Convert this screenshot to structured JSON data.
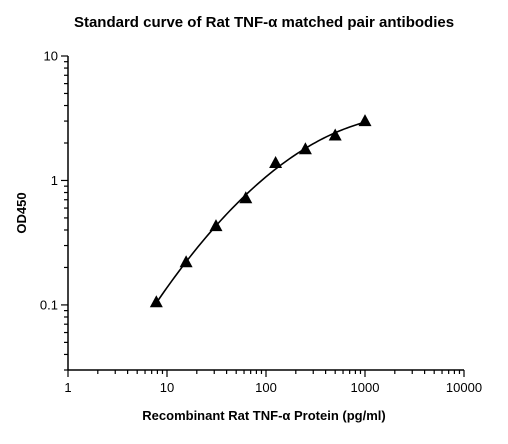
{
  "chart_data": {
    "type": "scatter",
    "title": "Standard curve of Rat TNF-α matched pair antibodies",
    "xlabel": "Recombinant Rat TNF-α Protein (pg/ml)",
    "ylabel": "OD450",
    "xscale": "log",
    "yscale": "log",
    "xlim": [
      1,
      10000
    ],
    "ylim": [
      0.03,
      10
    ],
    "xticks": [
      1,
      10,
      100,
      1000,
      10000
    ],
    "xtick_labels": [
      "1",
      "10",
      "100",
      "1000",
      "10000"
    ],
    "yticks": [
      0.1,
      1,
      10
    ],
    "ytick_labels": [
      "0.1",
      "1",
      "10"
    ],
    "grid": false,
    "legend": "none",
    "marker": "triangle",
    "color": "#000000",
    "fit_line": true,
    "series": [
      {
        "x": [
          7.8,
          15.6,
          31.25,
          62.5,
          125,
          250,
          500,
          1000
        ],
        "values": [
          0.105,
          0.22,
          0.43,
          0.72,
          1.38,
          1.78,
          2.3,
          3.0
        ]
      }
    ]
  }
}
